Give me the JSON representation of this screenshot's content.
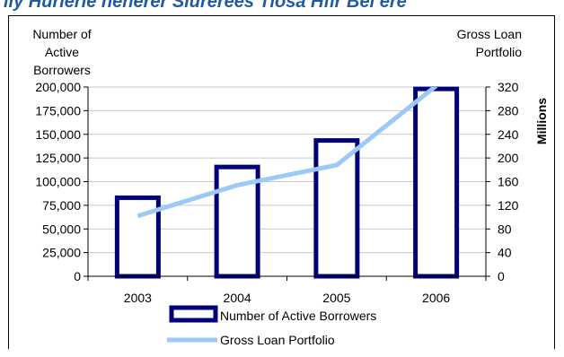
{
  "header_text": "ily Hurlerie nenerer Siurerees Tiosa Hfir Bei ere",
  "chart_data": {
    "type": "bar-line combo",
    "categories": [
      "2003",
      "2004",
      "2005",
      "2006"
    ],
    "series": [
      {
        "name": "Number of Active Borrowers",
        "type": "bar",
        "axis": "left",
        "values": [
          83000,
          115500,
          143500,
          198000
        ],
        "color": "#00007a"
      },
      {
        "name": "Gross Loan Portfolio",
        "type": "line",
        "axis": "right",
        "values": [
          102,
          154,
          188,
          322
        ],
        "color": "#9cc9f7"
      }
    ],
    "y_left": {
      "label_lines": [
        "Number of",
        "Active",
        "Borrowers"
      ],
      "range": [
        0,
        200000
      ],
      "ticks": [
        0,
        25000,
        50000,
        75000,
        100000,
        125000,
        150000,
        175000,
        200000
      ],
      "tick_labels": [
        "0",
        "25,000",
        "50,000",
        "75,000",
        "100,000",
        "125,000",
        "150,000",
        "175,000",
        "200,000"
      ]
    },
    "y_right": {
      "label_lines": [
        "Gross Loan",
        "Portfolio"
      ],
      "unit_label": "Millions",
      "range": [
        0,
        320
      ],
      "ticks": [
        0,
        40,
        80,
        120,
        160,
        200,
        240,
        280,
        320
      ],
      "tick_labels": [
        "0",
        "40",
        "80",
        "120",
        "160",
        "200",
        "240",
        "280",
        "320"
      ]
    },
    "grid": true,
    "legend_position": "bottom"
  }
}
